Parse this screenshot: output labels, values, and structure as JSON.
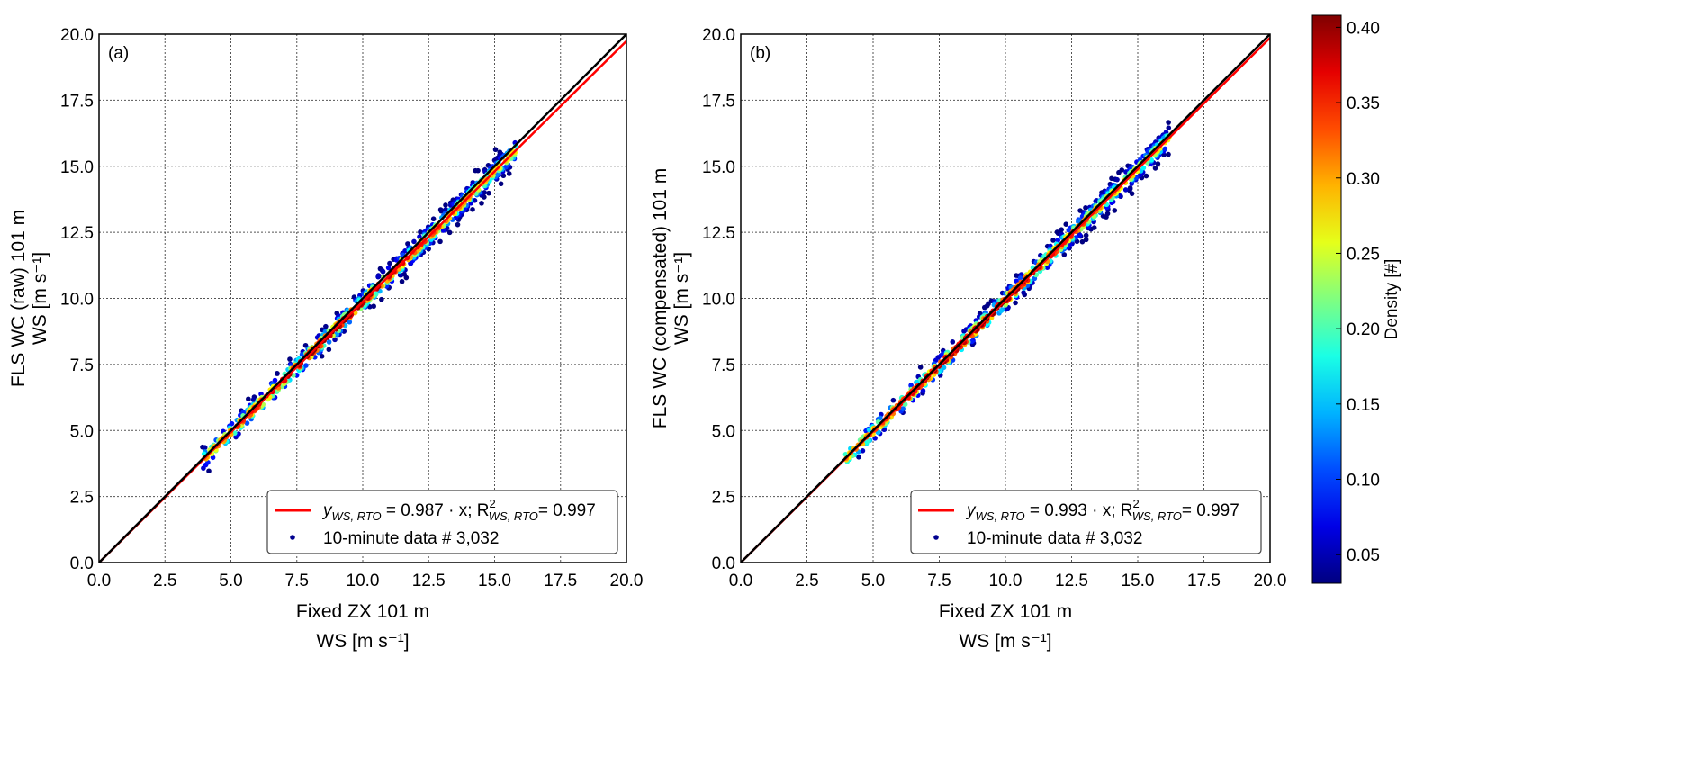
{
  "chart_data": [
    {
      "type": "scatter",
      "panel_label": "(a)",
      "xlabel_line1": "Fixed ZX 101 m",
      "xlabel_line2": "WS [m s⁻¹]",
      "ylabel_line1": "FLS WC (raw) 101 m",
      "ylabel_line2": "WS [m s⁻¹]",
      "xlim": [
        0,
        20
      ],
      "ylim": [
        0,
        20
      ],
      "xticks": [
        "0.0",
        "2.5",
        "5.0",
        "7.5",
        "10.0",
        "12.5",
        "15.0",
        "17.5",
        "20.0"
      ],
      "yticks": [
        "0.0",
        "2.5",
        "5.0",
        "7.5",
        "10.0",
        "12.5",
        "15.0",
        "17.5",
        "20.0"
      ],
      "grid": true,
      "fit": {
        "slope": 0.987,
        "r2": 0.997,
        "color": "#ff0000"
      },
      "identity_line": {
        "slope": 1.0,
        "color": "#000000"
      },
      "scatter": {
        "n": 3032,
        "x_range": [
          3.9,
          15.8
        ],
        "noise_sd": 0.25
      },
      "legend": {
        "position": "lower-right",
        "fit_label_prefix": "y",
        "fit_label_sub": "WS, RTO",
        "fit_label_mid": " = 0.987 · x; R",
        "fit_label_sup": "2",
        "fit_label_sub2": "WS, RTO",
        "fit_label_end": "= 0.997",
        "points_label": "10-minute data # 3,032"
      }
    },
    {
      "type": "scatter",
      "panel_label": "(b)",
      "xlabel_line1": "Fixed ZX 101 m",
      "xlabel_line2": "WS [m s⁻¹]",
      "ylabel_line1": "FLS WC (compensated) 101 m",
      "ylabel_line2": "WS [m s⁻¹]",
      "xlim": [
        0,
        20
      ],
      "ylim": [
        0,
        20
      ],
      "xticks": [
        "0.0",
        "2.5",
        "5.0",
        "7.5",
        "10.0",
        "12.5",
        "15.0",
        "17.5",
        "20.0"
      ],
      "yticks": [
        "0.0",
        "2.5",
        "5.0",
        "7.5",
        "10.0",
        "12.5",
        "15.0",
        "17.5",
        "20.0"
      ],
      "grid": true,
      "fit": {
        "slope": 0.993,
        "r2": 0.997,
        "color": "#ff0000"
      },
      "identity_line": {
        "slope": 1.0,
        "color": "#000000"
      },
      "scatter": {
        "n": 3032,
        "x_range": [
          3.9,
          16.2
        ],
        "noise_sd": 0.25
      },
      "legend": {
        "position": "lower-right",
        "fit_label_prefix": "y",
        "fit_label_sub": "WS, RTO",
        "fit_label_mid": " = 0.993 · x; R",
        "fit_label_sup": "2",
        "fit_label_sub2": "WS, RTO",
        "fit_label_end": "= 0.997",
        "points_label": "10-minute data # 3,032"
      }
    }
  ],
  "colorbar": {
    "label": "Density [#]",
    "range": [
      0.031,
      0.408
    ],
    "colormap": "jet",
    "ticks": [
      "0.05",
      "0.10",
      "0.15",
      "0.20",
      "0.25",
      "0.30",
      "0.35",
      "0.40"
    ]
  }
}
